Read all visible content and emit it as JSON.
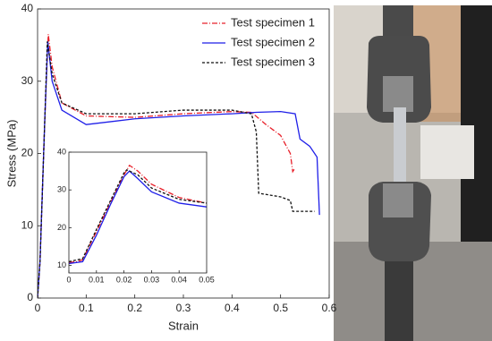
{
  "chart_data": [
    {
      "type": "line",
      "xlabel": "Strain",
      "ylabel": "Stress (MPa)",
      "xlim": [
        0,
        0.6
      ],
      "ylim": [
        0,
        40
      ],
      "xticks": [
        0,
        0.1,
        0.2,
        0.3,
        0.4,
        0.5,
        0.6
      ],
      "yticks": [
        0,
        10,
        20,
        30,
        40
      ],
      "legend": "upper right",
      "series": [
        {
          "name": "Test specimen 1",
          "color": "#e8202a",
          "linestyle": "dash-dot",
          "x": [
            0,
            0.005,
            0.015,
            0.022,
            0.03,
            0.05,
            0.1,
            0.2,
            0.3,
            0.4,
            0.44,
            0.47,
            0.5,
            0.52,
            0.525,
            0.53
          ],
          "values": [
            0,
            5,
            25,
            36.5,
            32,
            27,
            25.2,
            25,
            25.5,
            25.8,
            25.7,
            24,
            22.5,
            20,
            17.5,
            18
          ]
        },
        {
          "name": "Test specimen 2",
          "color": "#1f1fe8",
          "linestyle": "solid",
          "x": [
            0,
            0.005,
            0.015,
            0.021,
            0.03,
            0.05,
            0.1,
            0.2,
            0.3,
            0.4,
            0.45,
            0.5,
            0.53,
            0.54,
            0.56,
            0.57,
            0.575,
            0.58
          ],
          "values": [
            0,
            5,
            25,
            35.5,
            30,
            26,
            24,
            24.8,
            25.2,
            25.5,
            25.7,
            25.8,
            25.5,
            22,
            21,
            20,
            19.5,
            11.5
          ]
        },
        {
          "name": "Test specimen 3",
          "color": "#111111",
          "linestyle": "dashed",
          "x": [
            0,
            0.005,
            0.015,
            0.02,
            0.03,
            0.05,
            0.1,
            0.2,
            0.3,
            0.4,
            0.44,
            0.45,
            0.455,
            0.5,
            0.52,
            0.525,
            0.53,
            0.57
          ],
          "values": [
            0,
            5,
            25,
            35.5,
            31,
            27,
            25.5,
            25.5,
            26,
            26,
            25.5,
            23,
            14.5,
            14,
            13.5,
            12,
            12,
            12
          ]
        }
      ]
    },
    {
      "type": "line",
      "xlim": [
        0,
        0.05
      ],
      "ylim": [
        8,
        40
      ],
      "xticks": [
        0,
        0.01,
        0.02,
        0.03,
        0.04,
        0.05
      ],
      "yticks": [
        10,
        20,
        30,
        40
      ],
      "series": [
        {
          "color": "#e8202a",
          "linestyle": "dash-dot",
          "x": [
            0,
            0.003,
            0.005,
            0.01,
            0.015,
            0.02,
            0.022,
            0.025,
            0.03,
            0.04,
            0.05
          ],
          "values": [
            10.8,
            11,
            11.5,
            19,
            26.5,
            34,
            36.5,
            35,
            31.5,
            28,
            26.5
          ]
        },
        {
          "color": "#1f1fe8",
          "linestyle": "solid",
          "x": [
            0,
            0.005,
            0.01,
            0.015,
            0.02,
            0.022,
            0.025,
            0.03,
            0.04,
            0.05
          ],
          "values": [
            10.5,
            11,
            18,
            26,
            33.5,
            35,
            33,
            29.5,
            26.5,
            25.5
          ]
        },
        {
          "color": "#111111",
          "linestyle": "dashed",
          "x": [
            0,
            0.005,
            0.01,
            0.015,
            0.02,
            0.021,
            0.025,
            0.03,
            0.04,
            0.05
          ],
          "values": [
            11,
            11.8,
            19.5,
            27,
            34.5,
            35.3,
            34,
            30.5,
            27.5,
            26.5
          ]
        }
      ]
    }
  ]
}
